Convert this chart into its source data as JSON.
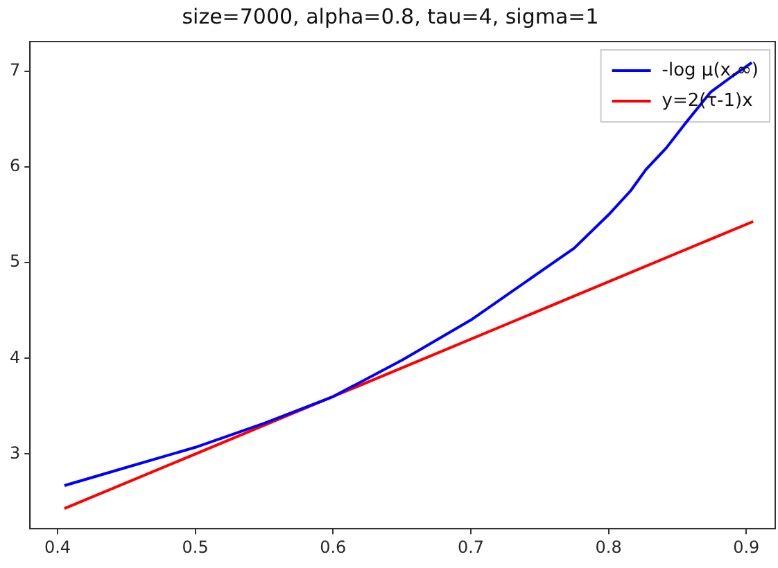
{
  "chart_data": {
    "type": "line",
    "title": "size=7000, alpha=0.8, tau=4, sigma=1",
    "xlim": [
      0.38,
      0.921
    ],
    "xticks": [
      0.4,
      0.5,
      0.6,
      0.7,
      0.8,
      0.9
    ],
    "ylim": [
      2.22,
      7.31
    ],
    "yticks": [
      3,
      4,
      5,
      6,
      7
    ],
    "grid": false,
    "legend": "top right",
    "marker": "none",
    "line_style": "solid",
    "series": [
      {
        "name": "-log μ(x,∞)",
        "color": "#0000ff",
        "x": [
          0.405,
          0.45,
          0.5,
          0.55,
          0.6,
          0.65,
          0.7,
          0.75,
          0.775,
          0.8,
          0.816,
          0.827,
          0.842,
          0.856,
          0.874,
          0.89,
          0.904
        ],
        "values": [
          2.67,
          2.86,
          3.07,
          3.32,
          3.6,
          3.98,
          4.4,
          4.9,
          5.15,
          5.5,
          5.75,
          5.97,
          6.2,
          6.46,
          6.78,
          6.95,
          7.09
        ]
      },
      {
        "name": "y=2(τ-1)x",
        "color": "#ff0000",
        "x": [
          0.405,
          0.905
        ],
        "values": [
          2.43,
          5.43
        ]
      }
    ]
  }
}
